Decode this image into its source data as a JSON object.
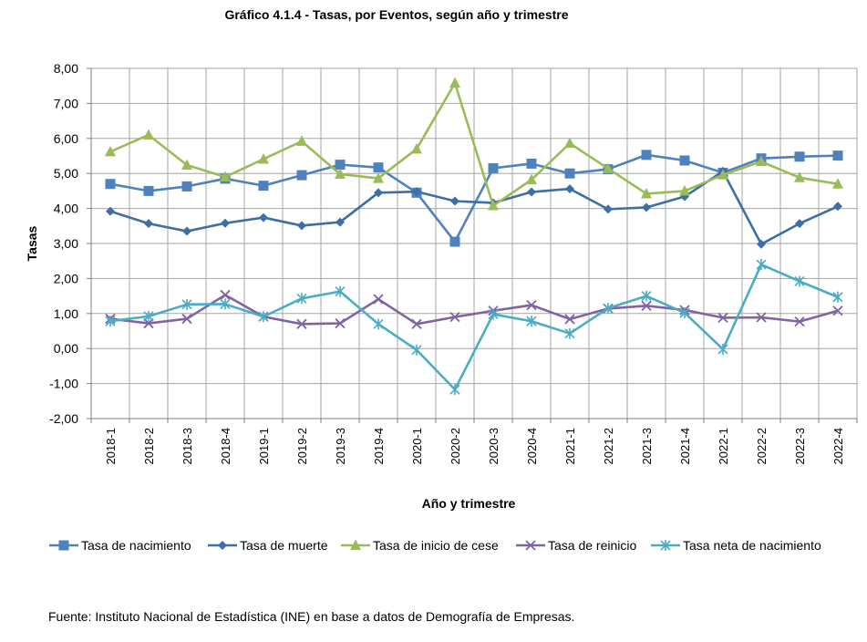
{
  "chart_data": {
    "type": "line",
    "title": "Gráfico 4.1.4 - Tasas, por Eventos, según año y trimestre",
    "xlabel": "Año y trimestre",
    "ylabel": "Tasas",
    "ylim": [
      -2,
      8
    ],
    "yticks": [
      "-2,00",
      "-1,00",
      "0,00",
      "1,00",
      "2,00",
      "3,00",
      "4,00",
      "5,00",
      "6,00",
      "7,00",
      "8,00"
    ],
    "grid": true,
    "legend_position": "bottom",
    "categories": [
      "2018-1",
      "2018-2",
      "2018-3",
      "2018-4",
      "2019-1",
      "2019-2",
      "2019-3",
      "2019-4",
      "2020-1",
      "2020-2",
      "2020-3",
      "2020-4",
      "2021-1",
      "2021-2",
      "2021-3",
      "2021-4",
      "2022-1",
      "2022-2",
      "2022-3",
      "2022-4"
    ],
    "series": [
      {
        "name": "Tasa de nacimiento",
        "color": "#4f81bd",
        "marker": "square",
        "values": [
          4.7,
          4.5,
          4.63,
          4.85,
          4.65,
          4.95,
          5.25,
          5.17,
          4.45,
          3.05,
          5.15,
          5.28,
          5.0,
          5.12,
          5.53,
          5.37,
          5.02,
          5.43,
          5.48,
          5.51
        ]
      },
      {
        "name": "Tasa de muerte",
        "color": "#3e6ea6",
        "marker": "diamond",
        "values": [
          3.92,
          3.57,
          3.35,
          3.58,
          3.74,
          3.51,
          3.61,
          4.45,
          4.48,
          4.21,
          4.16,
          4.47,
          4.56,
          3.98,
          4.03,
          4.34,
          5.06,
          2.98,
          3.57,
          4.06
        ]
      },
      {
        "name": "Tasa de inicio de cese",
        "color": "#9bbb59",
        "marker": "triangle",
        "values": [
          5.62,
          6.1,
          5.24,
          4.9,
          5.41,
          5.92,
          4.98,
          4.86,
          5.7,
          7.58,
          4.08,
          4.82,
          5.86,
          5.14,
          4.42,
          4.5,
          4.96,
          5.34,
          4.88,
          4.7
        ]
      },
      {
        "name": "Tasa de reinicio",
        "color": "#8064a2",
        "marker": "x",
        "values": [
          0.85,
          0.72,
          0.85,
          1.53,
          0.91,
          0.7,
          0.72,
          1.41,
          0.7,
          0.9,
          1.08,
          1.24,
          0.84,
          1.14,
          1.22,
          1.1,
          0.88,
          0.89,
          0.77,
          1.08
        ]
      },
      {
        "name": "Tasa neta de nacimiento",
        "color": "#4bacc6",
        "marker": "star",
        "values": [
          0.78,
          0.92,
          1.26,
          1.27,
          0.91,
          1.43,
          1.63,
          0.7,
          -0.04,
          -1.17,
          0.98,
          0.78,
          0.43,
          1.15,
          1.5,
          1.02,
          -0.02,
          2.4,
          1.92,
          1.47
        ]
      }
    ]
  },
  "source_note": "Fuente: Instituto Nacional de Estadística (INE) en base a datos de Demografía de Empresas."
}
